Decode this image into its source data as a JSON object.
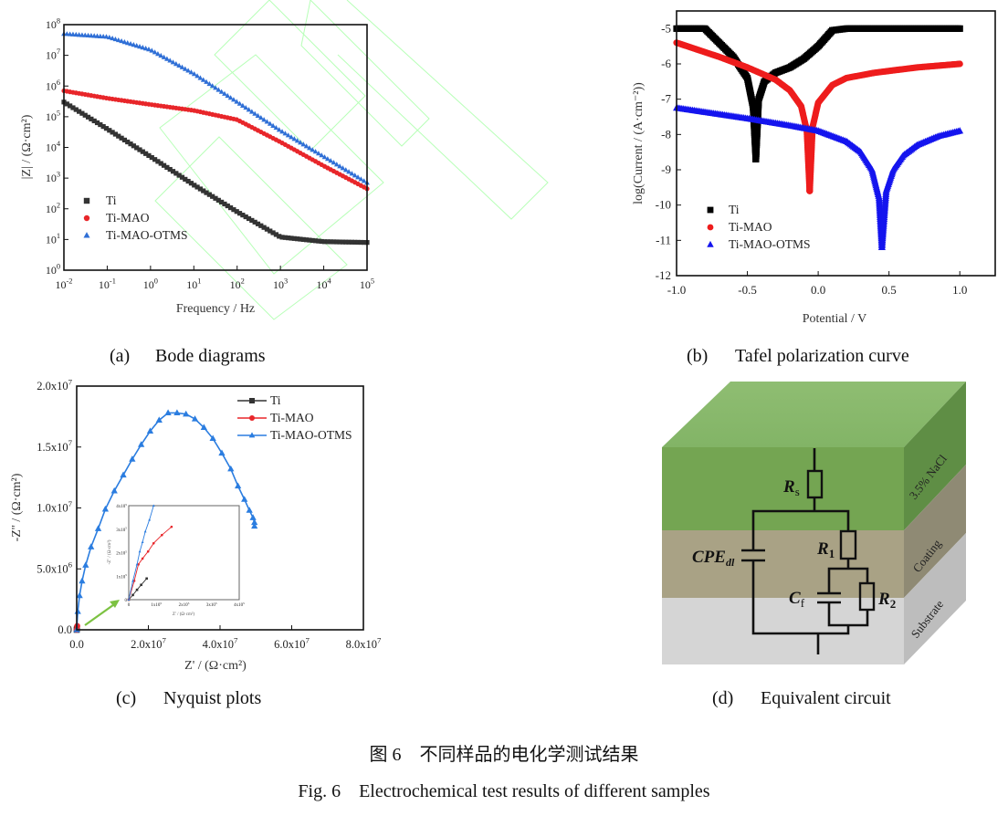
{
  "colors": {
    "ti": "#333333",
    "ti_mao": "#e8262a",
    "ti_mao_otms_bode": "#2f6fd6",
    "ti_mao_otms_tafel": "#1414ee",
    "ti_mao_otms_nyq": "#2b7de0",
    "arrow": "#7cc242"
  },
  "panels": {
    "a": {
      "label": "(a)",
      "title": "Bode diagrams"
    },
    "b": {
      "label": "(b)",
      "title": "Tafel polarization curve"
    },
    "c": {
      "label": "(c)",
      "title": "Nyquist plots"
    },
    "d": {
      "label": "(d)",
      "title": "Equivalent circuit"
    }
  },
  "caption": {
    "zh": "图 6　不同样品的电化学测试结果",
    "en": "Fig. 6　Electrochemical test results of different samples"
  },
  "chart_data": [
    {
      "id": "bode",
      "type": "scatter",
      "xlabel": "Frequency / Hz",
      "ylabel": "|Z| / (Ω·cm²)",
      "xscale": "log",
      "yscale": "log",
      "xlim": [
        0.01,
        100000
      ],
      "ylim": [
        1,
        100000000
      ],
      "xticks": [
        "10^-2",
        "10^-1",
        "10^0",
        "10^1",
        "10^2",
        "10^3",
        "10^4",
        "10^5"
      ],
      "yticks": [
        "10^0",
        "10^1",
        "10^2",
        "10^3",
        "10^4",
        "10^5",
        "10^6",
        "10^7",
        "10^8"
      ],
      "legend": "bottom-left",
      "series": [
        {
          "name": "Ti",
          "marker": "square",
          "color": "#333333",
          "x": [
            0.01,
            0.1,
            1,
            10,
            100,
            1000,
            10000,
            100000
          ],
          "y": [
            300000,
            40000,
            5000,
            600,
            80,
            12,
            8.5,
            8
          ]
        },
        {
          "name": "Ti-MAO",
          "marker": "circle",
          "color": "#e8262a",
          "x": [
            0.01,
            0.1,
            1,
            10,
            100,
            1000,
            10000,
            100000
          ],
          "y": [
            700000,
            400000,
            250000,
            160000,
            80000,
            15000,
            2500,
            450
          ]
        },
        {
          "name": "Ti-MAO-OTMS",
          "marker": "triangle",
          "color": "#2f6fd6",
          "x": [
            0.01,
            0.1,
            1,
            10,
            100,
            1000,
            10000,
            100000
          ],
          "y": [
            50000000,
            40000000,
            15000000,
            2500000,
            300000,
            35000,
            5000,
            700
          ]
        }
      ]
    },
    {
      "id": "tafel",
      "type": "scatter",
      "xlabel": "Potential / V",
      "ylabel": "log(Current / (A·cm⁻²))",
      "xlim": [
        -1.0,
        1.25
      ],
      "ylim": [
        -12,
        -4.5
      ],
      "xticks": [
        "-1.0",
        "-0.5",
        "0.0",
        "0.5",
        "1.0"
      ],
      "yticks": [
        "-12",
        "-11",
        "-10",
        "-9",
        "-8",
        "-7",
        "-6",
        "-5"
      ],
      "legend": "bottom-left",
      "series": [
        {
          "name": "Ti",
          "marker": "square",
          "color": "#000000",
          "x": [
            -1.0,
            -0.8,
            -0.7,
            -0.6,
            -0.5,
            -0.46,
            -0.44,
            -0.44,
            -0.42,
            -0.38,
            -0.3,
            -0.2,
            -0.1,
            0.0,
            0.1,
            0.2,
            0.5,
            1.0
          ],
          "y": [
            -5.0,
            -5.0,
            -5.4,
            -5.8,
            -6.4,
            -7.2,
            -8.7,
            -8.7,
            -7.0,
            -6.5,
            -6.25,
            -6.1,
            -5.85,
            -5.5,
            -5.05,
            -5.0,
            -5.0,
            -5.0
          ]
        },
        {
          "name": "Ti-MAO",
          "marker": "circle",
          "color": "#ee1c1c",
          "x": [
            -1.0,
            -0.7,
            -0.5,
            -0.3,
            -0.2,
            -0.12,
            -0.08,
            -0.06,
            -0.06,
            -0.04,
            0.0,
            0.1,
            0.2,
            0.4,
            0.7,
            1.0
          ],
          "y": [
            -5.4,
            -5.8,
            -6.1,
            -6.45,
            -6.75,
            -7.2,
            -7.9,
            -9.6,
            -9.6,
            -7.8,
            -7.1,
            -6.6,
            -6.4,
            -6.25,
            -6.1,
            -6.0
          ]
        },
        {
          "name": "Ti-MAO-OTMS",
          "marker": "triangle",
          "color": "#1414ee",
          "x": [
            -1.0,
            -0.5,
            -0.2,
            0.0,
            0.2,
            0.3,
            0.38,
            0.43,
            0.45,
            0.45,
            0.48,
            0.53,
            0.6,
            0.7,
            0.85,
            1.0
          ],
          "y": [
            -7.25,
            -7.55,
            -7.75,
            -7.9,
            -8.2,
            -8.5,
            -9.0,
            -9.8,
            -11.2,
            -11.2,
            -9.6,
            -9.0,
            -8.6,
            -8.3,
            -8.05,
            -7.9
          ]
        }
      ]
    },
    {
      "id": "nyquist",
      "type": "line",
      "xlabel": "Z' / (Ω·cm²)",
      "ylabel": "-Z'' / (Ω·cm²)",
      "xlim": [
        0,
        80000000
      ],
      "ylim": [
        0,
        20000000
      ],
      "xticks": [
        "0.0",
        "2.0x10^7",
        "4.0x10^7",
        "6.0x10^7",
        "8.0x10^7"
      ],
      "yticks": [
        "0.0",
        "5.0x10^6",
        "1.0x10^7",
        "1.5x10^7",
        "2.0x10^7"
      ],
      "legend": "top-right",
      "series": [
        {
          "name": "Ti",
          "marker": "square",
          "color": "#333333",
          "x": [
            0,
            60000
          ],
          "y": [
            0,
            90000
          ]
        },
        {
          "name": "Ti-MAO",
          "marker": "circle",
          "color": "#e8262a",
          "x": [
            0,
            155000
          ],
          "y": [
            0,
            310000
          ]
        },
        {
          "name": "Ti-MAO-OTMS",
          "marker": "triangle",
          "color": "#2b7de0",
          "x": [
            0,
            300000,
            800000,
            1500000,
            2500000,
            4000000,
            6000000,
            8000000,
            10500000,
            13000000,
            15500000,
            18000000,
            20500000,
            23000000,
            25500000,
            28000000,
            30500000,
            33000000,
            35500000,
            38000000,
            40500000,
            43000000,
            45000000,
            46800000,
            48200000,
            49200000,
            49600000,
            49600000
          ],
          "y": [
            0,
            1500000,
            2800000,
            4000000,
            5300000,
            6800000,
            8300000,
            9900000,
            11400000,
            12700000,
            14000000,
            15200000,
            16300000,
            17200000,
            17800000,
            17800000,
            17700000,
            17300000,
            16600000,
            15700000,
            14500000,
            13200000,
            11800000,
            10700000,
            9800000,
            9200000,
            8800000,
            8500000
          ]
        }
      ],
      "inset": {
        "xlabel": "Z' / (Ω·cm²)",
        "ylabel": "-Z'' / (Ω·cm²)",
        "xlim": [
          0,
          400000
        ],
        "ylim": [
          0,
          400000
        ],
        "xticks": [
          "0",
          "1x10^5",
          "2x10^5",
          "3x10^5",
          "4x10^5"
        ],
        "yticks": [
          "0",
          "1x10^5",
          "2x10^5",
          "3x10^5",
          "4x10^5"
        ],
        "series": [
          {
            "name": "Ti",
            "x": [
              0,
              15000,
              30000,
              45000,
              65000
            ],
            "y": [
              0,
              20000,
              42000,
              63000,
              90000
            ]
          },
          {
            "name": "Ti-MAO",
            "x": [
              0,
              20000,
              35000,
              50000,
              70000,
              90000,
              120000,
              155000
            ],
            "y": [
              0,
              80000,
              150000,
              175000,
              205000,
              240000,
              275000,
              310000
            ]
          },
          {
            "name": "Ti-MAO-OTMS",
            "x": [
              0,
              15000,
              30000,
              40000,
              50000,
              60000,
              75000,
              90000
            ],
            "y": [
              0,
              80000,
              150000,
              205000,
              245000,
              290000,
              340000,
              400000
            ]
          }
        ]
      }
    }
  ],
  "circuit": {
    "layers": [
      "3.5% NaCl",
      "Coating",
      "Substrate"
    ],
    "layer_colors": [
      "#78a858",
      "#a8a084",
      "#d6d6d6"
    ],
    "components": {
      "rs": {
        "main": "R",
        "sub": "s"
      },
      "r1": {
        "main": "R",
        "sub": "1"
      },
      "r2": {
        "main": "R",
        "sub": "2"
      },
      "cf": {
        "main": "C",
        "sub": "f"
      },
      "cpe": {
        "main": "CPE",
        "sub": "dl"
      }
    }
  }
}
